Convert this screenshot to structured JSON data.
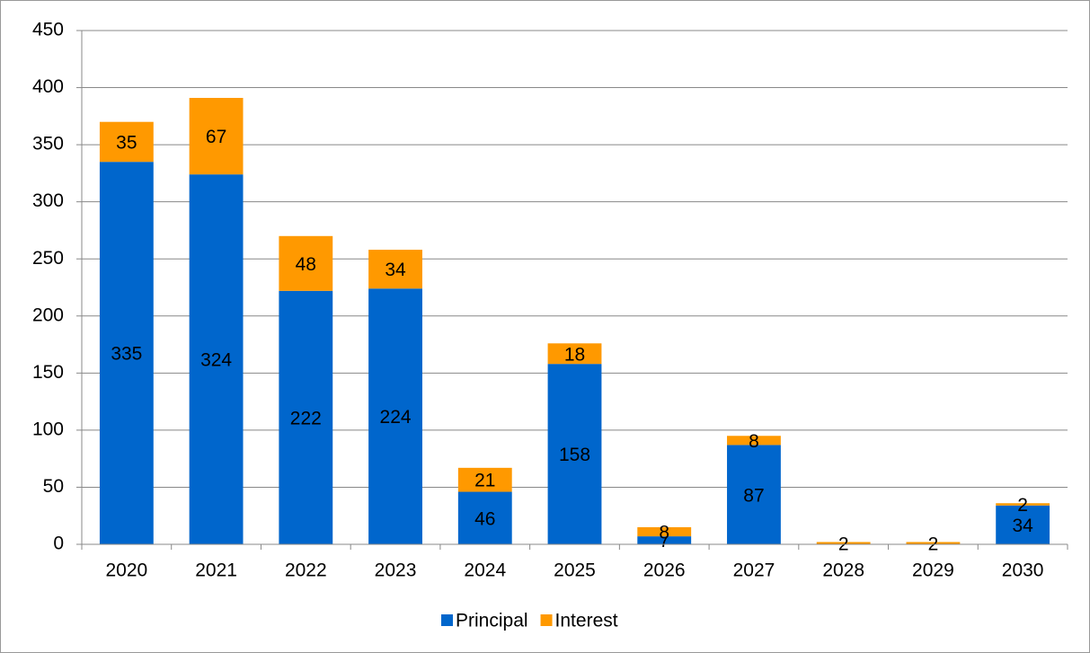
{
  "chart_data": {
    "type": "stacked_bar",
    "categories": [
      "2020",
      "2021",
      "2022",
      "2023",
      "2024",
      "2025",
      "2026",
      "2027",
      "2028",
      "2029",
      "2030"
    ],
    "series": [
      {
        "name": "Principal",
        "color": "#0066cc",
        "values": [
          335,
          324,
          222,
          224,
          46,
          158,
          7,
          87,
          null,
          null,
          34
        ]
      },
      {
        "name": "Interest",
        "color": "#ff9900",
        "values": [
          35,
          67,
          48,
          34,
          21,
          18,
          8,
          8,
          2,
          2,
          2
        ]
      }
    ],
    "ylim": [
      0,
      450
    ],
    "yticks": [
      0,
      50,
      100,
      150,
      200,
      250,
      300,
      350,
      400,
      450
    ],
    "grid": true,
    "legend": "bottom"
  }
}
